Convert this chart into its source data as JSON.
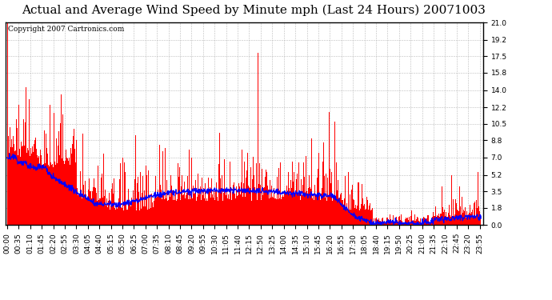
{
  "title": "Actual and Average Wind Speed by Minute mph (Last 24 Hours) 20071003",
  "copyright": "Copyright 2007 Cartronics.com",
  "yticks": [
    0.0,
    1.8,
    3.5,
    5.2,
    7.0,
    8.8,
    10.5,
    12.2,
    14.0,
    15.8,
    17.5,
    19.2,
    21.0
  ],
  "ymin": 0.0,
  "ymax": 21.0,
  "bar_color": "#FF0000",
  "line_color": "#0000FF",
  "background_color": "#FFFFFF",
  "grid_color": "#BBBBBB",
  "title_fontsize": 11,
  "copyright_fontsize": 6.5,
  "tick_fontsize": 6.5,
  "n_minutes": 1440,
  "label_interval": 35
}
